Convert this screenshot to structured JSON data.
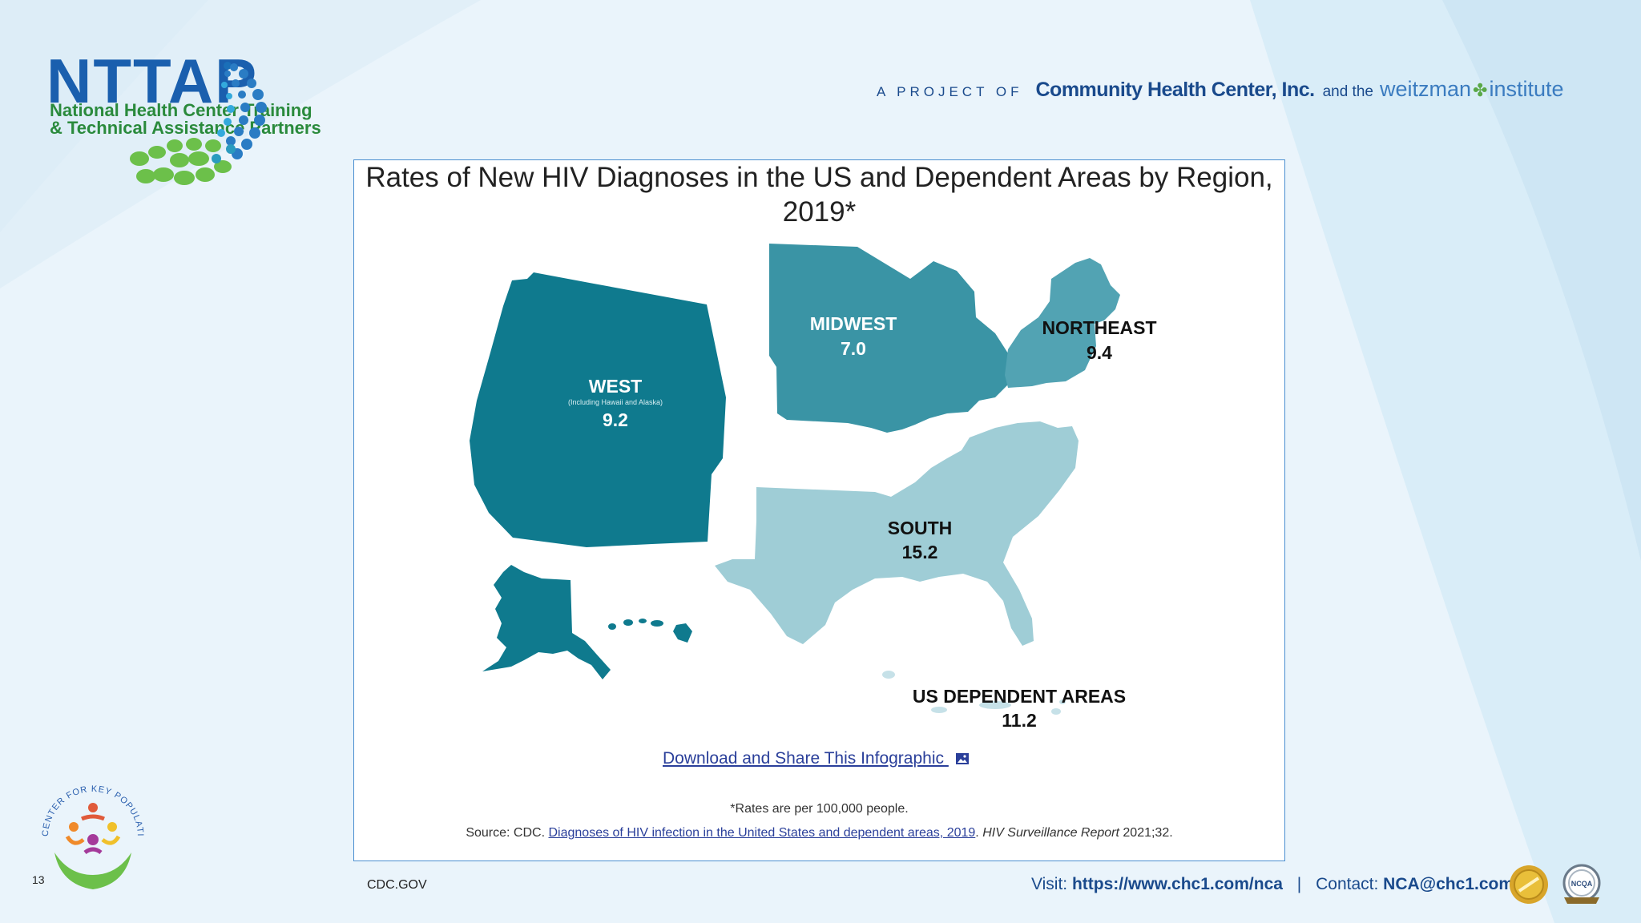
{
  "header": {
    "logo_word": "NTTAP",
    "logo_line1": "National Health Center Training",
    "logo_line2": "& Technical Assistance Partners",
    "project_of": "A PROJECT OF",
    "chc_name": "Community Health Center, Inc.",
    "and_the": "and the",
    "weitzman_a": "weitzman",
    "weitzman_b": "institute"
  },
  "card": {
    "title_line1": "Rates of New HIV Diagnoses in the US and Dependent Areas by Region,",
    "title_line2": "2019*",
    "regions": {
      "west": {
        "name": "WEST",
        "note": "(Including Hawaii and Alaska)",
        "rate": "9.2"
      },
      "midwest": {
        "name": "MIDWEST",
        "rate": "7.0"
      },
      "northeast": {
        "name": "NORTHEAST",
        "rate": "9.4"
      },
      "south": {
        "name": "SOUTH",
        "rate": "15.2"
      },
      "dependent": {
        "name": "US DEPENDENT AREAS",
        "rate": "11.2"
      }
    },
    "download_label": "Download and Share This Infographic",
    "footnote": "*Rates are per 100,000 people.",
    "source_prefix": "Source: CDC.",
    "source_link": "Diagnoses of HIV infection in the United States and dependent areas, 2019",
    "source_journal": "HIV Surveillance Report",
    "source_suffix": "2021;32."
  },
  "footer": {
    "slide_number": "13",
    "cdc_label": "CDC.GOV",
    "visit_label": "Visit:",
    "visit_url": "https://www.chc1.com/nca",
    "separator": "|",
    "contact_label": "Contact:",
    "contact_email": "NCA@chc1.com",
    "kp_logo_text": "CENTER FOR KEY POPULATIONS",
    "badge_right_text": "NCQA"
  },
  "colors": {
    "west": "#0f7a8e",
    "midwest": "#3a94a5",
    "northeast": "#52a3b3",
    "south": "#9fcdd6",
    "dependent": "#c6e1e8",
    "brand_blue": "#1a4a8c",
    "link": "#2a3f9a"
  }
}
